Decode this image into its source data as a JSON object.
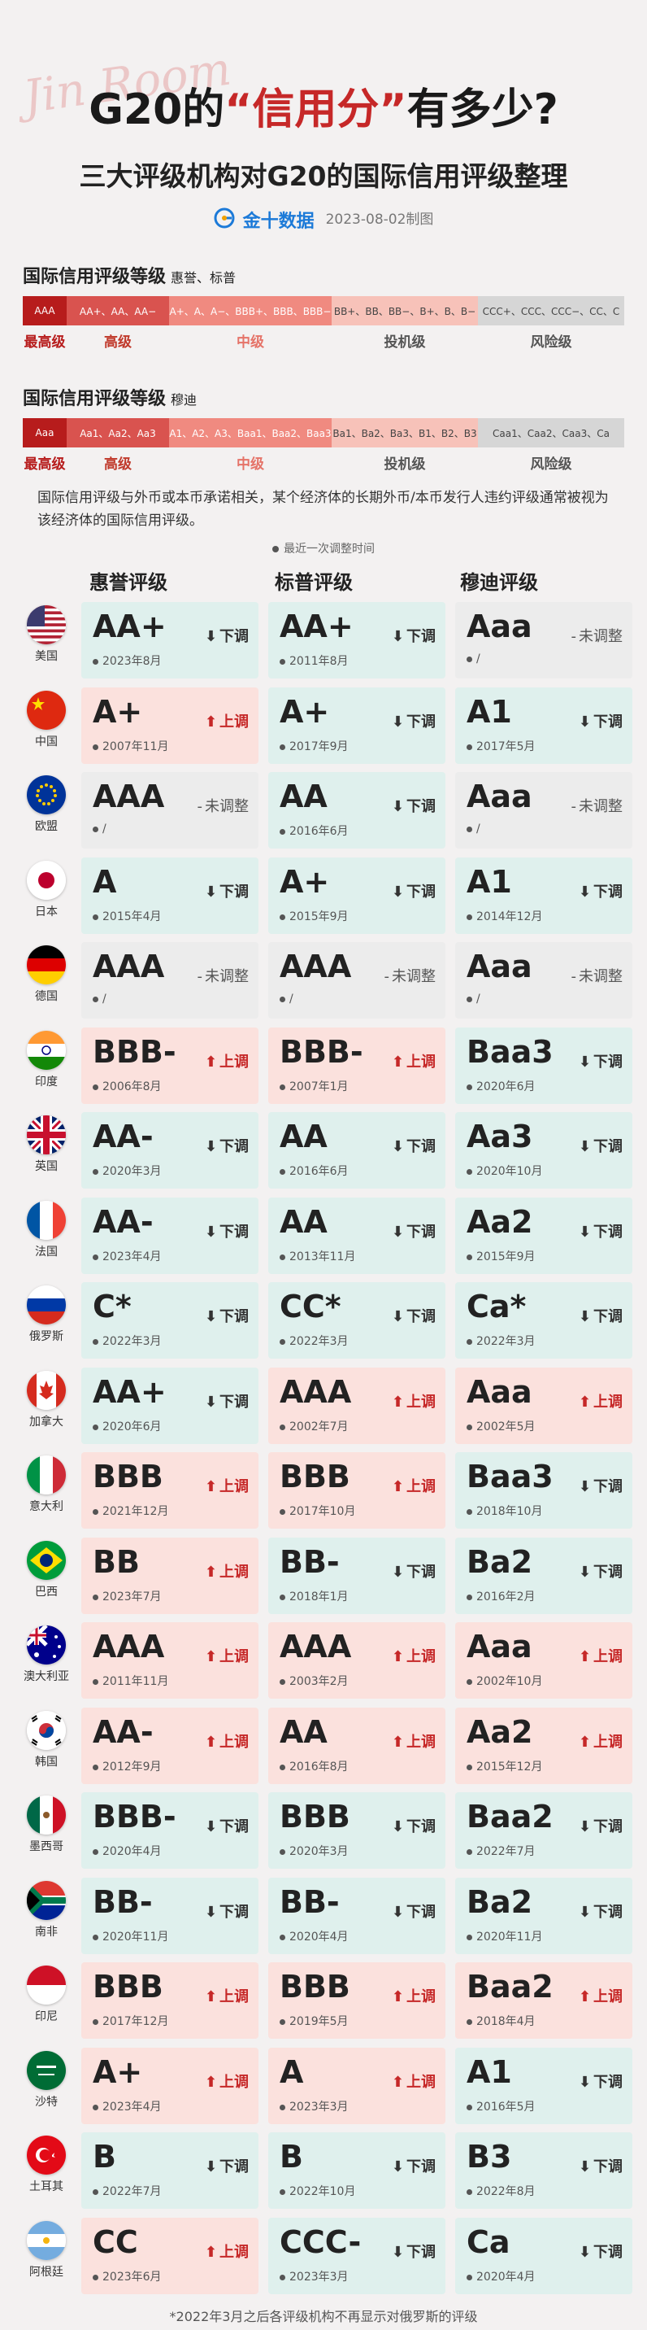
{
  "header": {
    "deco_script": "Jin Room",
    "title_pre": "G20的",
    "title_hl": "“信用分”",
    "title_post": "有多少?",
    "subtitle": "三大评级机构对G20的国际信用评级整理",
    "logo": "金十数据",
    "date": "2023-08-02制图"
  },
  "scale1": {
    "title": "国际信用评级等级",
    "agencies": "惠誉、标普",
    "segments": [
      "AAA",
      "AA+、AA、AA−",
      "A+、A、A−、BBB+、BBB、BBB−",
      "BB+、BB、BB−、B+、B、B−",
      "CCC+、CCC、CCC−、CC、C"
    ],
    "labels": [
      "最高级",
      "高级",
      "中级",
      "投机级",
      "风险级"
    ]
  },
  "scale2": {
    "title": "国际信用评级等级",
    "agencies": "穆迪",
    "segments": [
      "Aaa",
      "Aa1、Aa2、Aa3",
      "A1、A2、A3、Baa1、Baa2、Baa3",
      "Ba1、Ba2、Ba3、B1、B2、B3",
      "Caa1、Caa2、Caa3、Ca"
    ],
    "labels": [
      "最高级",
      "高级",
      "中级",
      "投机级",
      "风险级"
    ]
  },
  "colors": {
    "highest": "#b71c1c",
    "high": "#d9534f",
    "mid": "#f08a80",
    "spec": "#f7c2b9",
    "risk": "#d6d6d6",
    "label_highest": "#b71c1c",
    "label_high": "#c0392b",
    "label_mid": "#e57368",
    "label_spec": "#555555",
    "label_risk": "#555555",
    "down_bg": "#dff0ed",
    "up_bg": "#fbe1dd",
    "unch_bg": "#ececec",
    "up_text": "#c62828"
  },
  "note": "国际信用评级与外币或本币承诺相关，某个经济体的长期外币/本币发行人违约评级通常被视为该经济体的国际信用评级。",
  "legend": "最近一次调整时间",
  "columns": [
    "惠誉评级",
    "标普评级",
    "穆迪评级"
  ],
  "action_labels": {
    "down": "下调",
    "up": "上调",
    "unch": "未调整"
  },
  "rows": [
    {
      "country": "美国",
      "flag": "us",
      "cells": [
        {
          "rating": "AA+",
          "date": "2023年8月",
          "action": "down"
        },
        {
          "rating": "AA+",
          "date": "2011年8月",
          "action": "down"
        },
        {
          "rating": "Aaa",
          "date": "/",
          "action": "unch"
        }
      ]
    },
    {
      "country": "中国",
      "flag": "cn",
      "cells": [
        {
          "rating": "A+",
          "date": "2007年11月",
          "action": "up"
        },
        {
          "rating": "A+",
          "date": "2017年9月",
          "action": "down"
        },
        {
          "rating": "A1",
          "date": "2017年5月",
          "action": "down"
        }
      ]
    },
    {
      "country": "欧盟",
      "flag": "eu",
      "cells": [
        {
          "rating": "AAA",
          "date": "/",
          "action": "unch"
        },
        {
          "rating": "AA",
          "date": "2016年6月",
          "action": "down"
        },
        {
          "rating": "Aaa",
          "date": "/",
          "action": "unch"
        }
      ]
    },
    {
      "country": "日本",
      "flag": "jp",
      "cells": [
        {
          "rating": "A",
          "date": "2015年4月",
          "action": "down"
        },
        {
          "rating": "A+",
          "date": "2015年9月",
          "action": "down"
        },
        {
          "rating": "A1",
          "date": "2014年12月",
          "action": "down"
        }
      ]
    },
    {
      "country": "德国",
      "flag": "de",
      "cells": [
        {
          "rating": "AAA",
          "date": "/",
          "action": "unch"
        },
        {
          "rating": "AAA",
          "date": "/",
          "action": "unch"
        },
        {
          "rating": "Aaa",
          "date": "/",
          "action": "unch"
        }
      ]
    },
    {
      "country": "印度",
      "flag": "in",
      "cells": [
        {
          "rating": "BBB-",
          "date": "2006年8月",
          "action": "up"
        },
        {
          "rating": "BBB-",
          "date": "2007年1月",
          "action": "up"
        },
        {
          "rating": "Baa3",
          "date": "2020年6月",
          "action": "down"
        }
      ]
    },
    {
      "country": "英国",
      "flag": "gb",
      "cells": [
        {
          "rating": "AA-",
          "date": "2020年3月",
          "action": "down"
        },
        {
          "rating": "AA",
          "date": "2016年6月",
          "action": "down"
        },
        {
          "rating": "Aa3",
          "date": "2020年10月",
          "action": "down"
        }
      ]
    },
    {
      "country": "法国",
      "flag": "fr",
      "cells": [
        {
          "rating": "AA-",
          "date": "2023年4月",
          "action": "down"
        },
        {
          "rating": "AA",
          "date": "2013年11月",
          "action": "down"
        },
        {
          "rating": "Aa2",
          "date": "2015年9月",
          "action": "down"
        }
      ]
    },
    {
      "country": "俄罗斯",
      "flag": "ru",
      "cells": [
        {
          "rating": "C*",
          "date": "2022年3月",
          "action": "down"
        },
        {
          "rating": "CC*",
          "date": "2022年3月",
          "action": "down"
        },
        {
          "rating": "Ca*",
          "date": "2022年3月",
          "action": "down"
        }
      ]
    },
    {
      "country": "加拿大",
      "flag": "ca",
      "cells": [
        {
          "rating": "AA+",
          "date": "2020年6月",
          "action": "down"
        },
        {
          "rating": "AAA",
          "date": "2002年7月",
          "action": "up"
        },
        {
          "rating": "Aaa",
          "date": "2002年5月",
          "action": "up"
        }
      ]
    },
    {
      "country": "意大利",
      "flag": "it",
      "cells": [
        {
          "rating": "BBB",
          "date": "2021年12月",
          "action": "up"
        },
        {
          "rating": "BBB",
          "date": "2017年10月",
          "action": "up"
        },
        {
          "rating": "Baa3",
          "date": "2018年10月",
          "action": "down"
        }
      ]
    },
    {
      "country": "巴西",
      "flag": "br",
      "cells": [
        {
          "rating": "BB",
          "date": "2023年7月",
          "action": "up"
        },
        {
          "rating": "BB-",
          "date": "2018年1月",
          "action": "down"
        },
        {
          "rating": "Ba2",
          "date": "2016年2月",
          "action": "down"
        }
      ]
    },
    {
      "country": "澳大利亚",
      "flag": "au",
      "cells": [
        {
          "rating": "AAA",
          "date": "2011年11月",
          "action": "up"
        },
        {
          "rating": "AAA",
          "date": "2003年2月",
          "action": "up"
        },
        {
          "rating": "Aaa",
          "date": "2002年10月",
          "action": "up"
        }
      ]
    },
    {
      "country": "韩国",
      "flag": "kr",
      "cells": [
        {
          "rating": "AA-",
          "date": "2012年9月",
          "action": "up"
        },
        {
          "rating": "AA",
          "date": "2016年8月",
          "action": "up"
        },
        {
          "rating": "Aa2",
          "date": "2015年12月",
          "action": "up"
        }
      ]
    },
    {
      "country": "墨西哥",
      "flag": "mx",
      "cells": [
        {
          "rating": "BBB-",
          "date": "2020年4月",
          "action": "down"
        },
        {
          "rating": "BBB",
          "date": "2020年3月",
          "action": "down"
        },
        {
          "rating": "Baa2",
          "date": "2022年7月",
          "action": "down"
        }
      ]
    },
    {
      "country": "南非",
      "flag": "za",
      "cells": [
        {
          "rating": "BB-",
          "date": "2020年11月",
          "action": "down"
        },
        {
          "rating": "BB-",
          "date": "2020年4月",
          "action": "down"
        },
        {
          "rating": "Ba2",
          "date": "2020年11月",
          "action": "down"
        }
      ]
    },
    {
      "country": "印尼",
      "flag": "id",
      "cells": [
        {
          "rating": "BBB",
          "date": "2017年12月",
          "action": "up"
        },
        {
          "rating": "BBB",
          "date": "2019年5月",
          "action": "up"
        },
        {
          "rating": "Baa2",
          "date": "2018年4月",
          "action": "up"
        }
      ]
    },
    {
      "country": "沙特",
      "flag": "sa",
      "cells": [
        {
          "rating": "A+",
          "date": "2023年4月",
          "action": "up"
        },
        {
          "rating": "A",
          "date": "2023年3月",
          "action": "up"
        },
        {
          "rating": "A1",
          "date": "2016年5月",
          "action": "down"
        }
      ]
    },
    {
      "country": "土耳其",
      "flag": "tr",
      "cells": [
        {
          "rating": "B",
          "date": "2022年7月",
          "action": "down"
        },
        {
          "rating": "B",
          "date": "2022年10月",
          "action": "down"
        },
        {
          "rating": "B3",
          "date": "2022年8月",
          "action": "down"
        }
      ]
    },
    {
      "country": "阿根廷",
      "flag": "ar",
      "cells": [
        {
          "rating": "CC",
          "date": "2023年6月",
          "action": "up"
        },
        {
          "rating": "CCC-",
          "date": "2023年3月",
          "action": "down"
        },
        {
          "rating": "Ca",
          "date": "2020年4月",
          "action": "down"
        }
      ]
    }
  ],
  "footnote": "*2022年3月之后各评级机构不再显示对俄罗斯的评级"
}
